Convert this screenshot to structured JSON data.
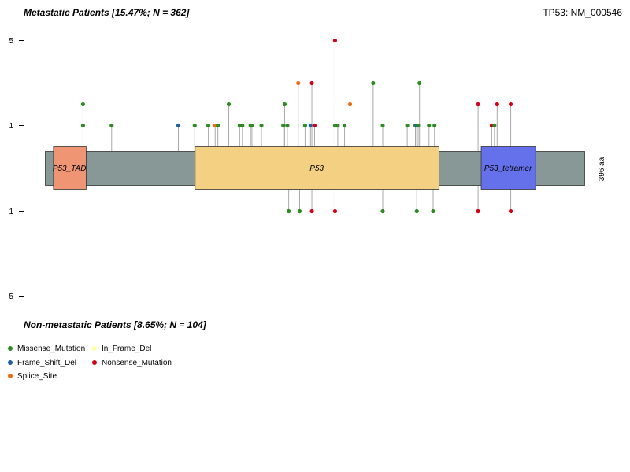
{
  "header": {
    "title_top": "Metastatic Patients [15.47%; N = 362]",
    "title_gene": "TP53: NM_000546",
    "title_bottom": "Non-metastatic Patients [8.65%; N = 104]"
  },
  "chart_data": {
    "type": "lollipop",
    "protein_length": 396,
    "protein_length_label": "396 aa",
    "backbone_color": "#889896",
    "y_ticks_top": [
      "5",
      "1"
    ],
    "y_ticks_bottom": [
      "1",
      "5"
    ],
    "domains": [
      {
        "name": "P53_TAD",
        "start": 6,
        "end": 30,
        "color": "#ef9573"
      },
      {
        "name": "P53",
        "start": 110,
        "end": 289,
        "color": "#f4d083"
      },
      {
        "name": "P53_tetramer",
        "start": 320,
        "end": 360,
        "color": "#6571ea"
      }
    ],
    "mutation_types": {
      "Missense_Mutation": "#2e8b22",
      "Frame_Shift_Del": "#1f5fa8",
      "Splice_Site": "#f06a10",
      "In_Frame_Del": "#ffff99",
      "Nonsense_Mutation": "#d60016"
    },
    "top_mutations": [
      {
        "pos": 28,
        "count": 1,
        "type": "Missense_Mutation"
      },
      {
        "pos": 28,
        "count": 2,
        "type": "Missense_Mutation"
      },
      {
        "pos": 49,
        "count": 1,
        "type": "Missense_Mutation"
      },
      {
        "pos": 98,
        "count": 1,
        "type": "Frame_Shift_Del"
      },
      {
        "pos": 110,
        "count": 1,
        "type": "Missense_Mutation"
      },
      {
        "pos": 120,
        "count": 1,
        "type": "Missense_Mutation"
      },
      {
        "pos": 125,
        "count": 1,
        "type": "Splice_Site"
      },
      {
        "pos": 127,
        "count": 1,
        "type": "Missense_Mutation"
      },
      {
        "pos": 135,
        "count": 2,
        "type": "Missense_Mutation"
      },
      {
        "pos": 143,
        "count": 1,
        "type": "Missense_Mutation"
      },
      {
        "pos": 145,
        "count": 1,
        "type": "Missense_Mutation"
      },
      {
        "pos": 151,
        "count": 1,
        "type": "Missense_Mutation"
      },
      {
        "pos": 152,
        "count": 1,
        "type": "Missense_Mutation"
      },
      {
        "pos": 159,
        "count": 1,
        "type": "Missense_Mutation"
      },
      {
        "pos": 175,
        "count": 1,
        "type": "Missense_Mutation"
      },
      {
        "pos": 176,
        "count": 2,
        "type": "Missense_Mutation"
      },
      {
        "pos": 178,
        "count": 1,
        "type": "Missense_Mutation"
      },
      {
        "pos": 186,
        "count": 3,
        "type": "Splice_Site"
      },
      {
        "pos": 191,
        "count": 1,
        "type": "Missense_Mutation"
      },
      {
        "pos": 195,
        "count": 1,
        "type": "Frame_Shift_Del"
      },
      {
        "pos": 196,
        "count": 3,
        "type": "Nonsense_Mutation"
      },
      {
        "pos": 198,
        "count": 1,
        "type": "Nonsense_Mutation"
      },
      {
        "pos": 213,
        "count": 5,
        "type": "Nonsense_Mutation"
      },
      {
        "pos": 213,
        "count": 1,
        "type": "Missense_Mutation"
      },
      {
        "pos": 215,
        "count": 1,
        "type": "Missense_Mutation"
      },
      {
        "pos": 220,
        "count": 1,
        "type": "Missense_Mutation"
      },
      {
        "pos": 224,
        "count": 2,
        "type": "Splice_Site"
      },
      {
        "pos": 241,
        "count": 3,
        "type": "Missense_Mutation"
      },
      {
        "pos": 248,
        "count": 1,
        "type": "Missense_Mutation"
      },
      {
        "pos": 266,
        "count": 1,
        "type": "Missense_Mutation"
      },
      {
        "pos": 272,
        "count": 1,
        "type": "Missense_Mutation"
      },
      {
        "pos": 273,
        "count": 1,
        "type": "Frame_Shift_Del"
      },
      {
        "pos": 274,
        "count": 1,
        "type": "Missense_Mutation"
      },
      {
        "pos": 275,
        "count": 3,
        "type": "Missense_Mutation"
      },
      {
        "pos": 282,
        "count": 1,
        "type": "Missense_Mutation"
      },
      {
        "pos": 286,
        "count": 1,
        "type": "Missense_Mutation"
      },
      {
        "pos": 318,
        "count": 2,
        "type": "Nonsense_Mutation"
      },
      {
        "pos": 328,
        "count": 1,
        "type": "Nonsense_Mutation"
      },
      {
        "pos": 330,
        "count": 1,
        "type": "Missense_Mutation"
      },
      {
        "pos": 332,
        "count": 2,
        "type": "Nonsense_Mutation"
      },
      {
        "pos": 342,
        "count": 2,
        "type": "Nonsense_Mutation"
      }
    ],
    "bottom_mutations": [
      {
        "pos": 179,
        "count": 1,
        "type": "Missense_Mutation"
      },
      {
        "pos": 187,
        "count": 1,
        "type": "Missense_Mutation"
      },
      {
        "pos": 196,
        "count": 1,
        "type": "Nonsense_Mutation"
      },
      {
        "pos": 213,
        "count": 1,
        "type": "Nonsense_Mutation"
      },
      {
        "pos": 248,
        "count": 1,
        "type": "Missense_Mutation"
      },
      {
        "pos": 273,
        "count": 1,
        "type": "Missense_Mutation"
      },
      {
        "pos": 285,
        "count": 1,
        "type": "Missense_Mutation"
      },
      {
        "pos": 318,
        "count": 1,
        "type": "Nonsense_Mutation"
      },
      {
        "pos": 342,
        "count": 1,
        "type": "Nonsense_Mutation"
      }
    ]
  },
  "legend": {
    "items": [
      {
        "label": "Missense_Mutation",
        "color": "#2e8b22"
      },
      {
        "label": "In_Frame_Del",
        "color": "#ffff99"
      },
      {
        "label": "Frame_Shift_Del",
        "color": "#1f5fa8"
      },
      {
        "label": "Nonsense_Mutation",
        "color": "#d60016"
      },
      {
        "label": "Splice_Site",
        "color": "#f06a10"
      }
    ]
  }
}
